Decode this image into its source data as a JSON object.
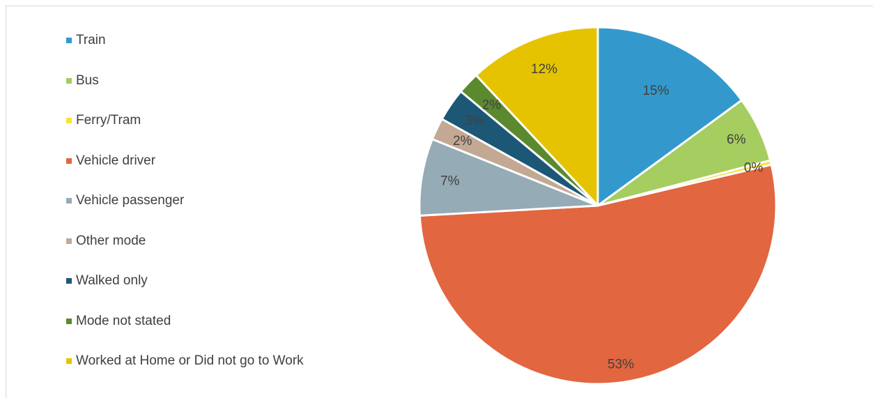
{
  "chart_data": {
    "type": "pie",
    "title": "",
    "categories": [
      "Train",
      "Bus",
      "Ferry/Tram",
      "Vehicle driver",
      "Vehicle passenger",
      "Other mode",
      "Walked only",
      "Mode not stated",
      "Worked at Home or Did not go to Work"
    ],
    "values": [
      15,
      6,
      0.4,
      53,
      7,
      2,
      3,
      2,
      12
    ],
    "labels": [
      "15%",
      "6%",
      "0%",
      "53%",
      "7%",
      "2%",
      "3%",
      "2%",
      "12%"
    ],
    "colors": [
      "#3399cc",
      "#a5cd5f",
      "#f5e33a",
      "#e26640",
      "#95abb6",
      "#c3a894",
      "#1d5776",
      "#5a8a2d",
      "#e6c300"
    ],
    "legend_position": "left"
  }
}
